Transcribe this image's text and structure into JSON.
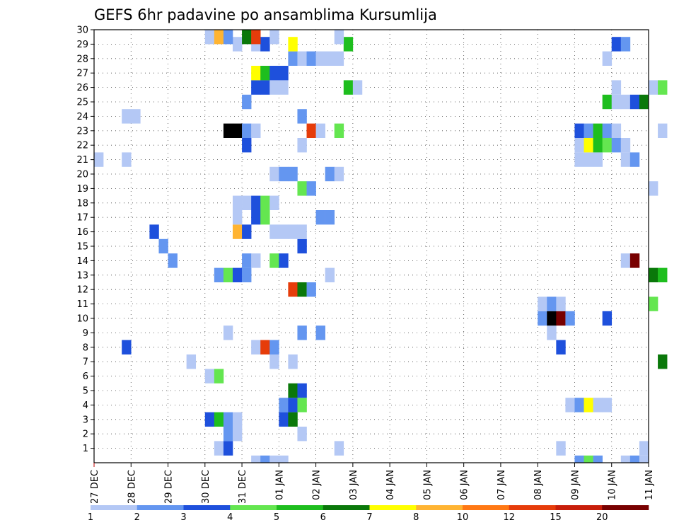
{
  "chart_data": {
    "type": "heatmap",
    "title": "GEFS 6hr padavine po ansamblima Kursumlija",
    "xlabel": "",
    "ylabel": "",
    "members": [
      "1",
      "2",
      "3",
      "4",
      "5",
      "6",
      "7",
      "8",
      "9",
      "10",
      "11",
      "12",
      "13",
      "14",
      "15",
      "16",
      "17",
      "18",
      "19",
      "20",
      "21",
      "22",
      "23",
      "24",
      "25",
      "26",
      "27",
      "28",
      "29",
      "30"
    ],
    "x_ticks": [
      "27 DEC",
      "28 DEC",
      "29 DEC",
      "30 DEC",
      "31 DEC",
      "01 JAN",
      "02 JAN",
      "03 JAN",
      "04 JAN",
      "05 JAN",
      "06 JAN",
      "07 JAN",
      "08 JAN",
      "09 JAN",
      "10 JAN",
      "11 JAN"
    ],
    "time_steps_per_day": 4,
    "grid": "dotted",
    "colorbar": {
      "labels": [
        "1",
        "2",
        "3",
        "4",
        "5",
        "6",
        "7",
        "8",
        "10",
        "12",
        "15",
        "20"
      ],
      "colors": [
        "#b4c8f5",
        "#6496f0",
        "#1e50dc",
        "#64e650",
        "#1ebe1e",
        "#0a780a",
        "#ffff00",
        "#ffb432",
        "#ff7814",
        "#e63c0a",
        "#c81e0a",
        "#780000"
      ]
    },
    "cells": [
      [
        1,
        13,
        1
      ],
      [
        1,
        14,
        3
      ],
      [
        1,
        26,
        1
      ],
      [
        1,
        50,
        1
      ],
      [
        1,
        59,
        1
      ],
      [
        2,
        14,
        2
      ],
      [
        2,
        15,
        1
      ],
      [
        2,
        22,
        1
      ],
      [
        3,
        12,
        3
      ],
      [
        3,
        13,
        5
      ],
      [
        3,
        14,
        2
      ],
      [
        3,
        15,
        1
      ],
      [
        3,
        20,
        3
      ],
      [
        3,
        21,
        6
      ],
      [
        4,
        20,
        2
      ],
      [
        4,
        21,
        3
      ],
      [
        4,
        22,
        4
      ],
      [
        4,
        51,
        1
      ],
      [
        4,
        52,
        2
      ],
      [
        4,
        53,
        7
      ],
      [
        4,
        54,
        1
      ],
      [
        4,
        55,
        1
      ],
      [
        5,
        21,
        6
      ],
      [
        5,
        22,
        3
      ],
      [
        6,
        12,
        1
      ],
      [
        6,
        13,
        4
      ],
      [
        7,
        10,
        1
      ],
      [
        7,
        19,
        1
      ],
      [
        7,
        21,
        1
      ],
      [
        7,
        61,
        6
      ],
      [
        8,
        3,
        3
      ],
      [
        8,
        17,
        1
      ],
      [
        8,
        18,
        10
      ],
      [
        8,
        19,
        2
      ],
      [
        8,
        50,
        3
      ],
      [
        9,
        14,
        1
      ],
      [
        9,
        22,
        2
      ],
      [
        9,
        24,
        2
      ],
      [
        9,
        49,
        1
      ],
      [
        10,
        48,
        2
      ],
      [
        10,
        49,
        15
      ],
      [
        10,
        50,
        12
      ],
      [
        10,
        51,
        2
      ],
      [
        10,
        55,
        3
      ],
      [
        11,
        48,
        1
      ],
      [
        11,
        49,
        2
      ],
      [
        11,
        50,
        1
      ],
      [
        11,
        60,
        4
      ],
      [
        12,
        21,
        10
      ],
      [
        12,
        22,
        6
      ],
      [
        12,
        23,
        2
      ],
      [
        13,
        13,
        2
      ],
      [
        13,
        14,
        4
      ],
      [
        13,
        15,
        3
      ],
      [
        13,
        16,
        2
      ],
      [
        13,
        25,
        1
      ],
      [
        13,
        60,
        6
      ],
      [
        13,
        61,
        5
      ],
      [
        14,
        8,
        2
      ],
      [
        14,
        16,
        2
      ],
      [
        14,
        17,
        1
      ],
      [
        14,
        19,
        4
      ],
      [
        14,
        20,
        3
      ],
      [
        14,
        57,
        1
      ],
      [
        14,
        58,
        12
      ],
      [
        15,
        7,
        2
      ],
      [
        15,
        22,
        3
      ],
      [
        16,
        6,
        3
      ],
      [
        16,
        15,
        8
      ],
      [
        16,
        16,
        3
      ],
      [
        16,
        19,
        1
      ],
      [
        16,
        20,
        1
      ],
      [
        16,
        21,
        1
      ],
      [
        16,
        22,
        1
      ],
      [
        17,
        15,
        1
      ],
      [
        17,
        17,
        3
      ],
      [
        17,
        18,
        4
      ],
      [
        17,
        24,
        2
      ],
      [
        17,
        25,
        2
      ],
      [
        18,
        15,
        1
      ],
      [
        18,
        16,
        1
      ],
      [
        18,
        17,
        3
      ],
      [
        18,
        18,
        4
      ],
      [
        18,
        19,
        1
      ],
      [
        19,
        22,
        4
      ],
      [
        19,
        23,
        2
      ],
      [
        19,
        60,
        1
      ],
      [
        20,
        19,
        1
      ],
      [
        20,
        20,
        2
      ],
      [
        20,
        21,
        2
      ],
      [
        20,
        25,
        2
      ],
      [
        20,
        26,
        1
      ],
      [
        21,
        0,
        1
      ],
      [
        21,
        3,
        1
      ],
      [
        21,
        52,
        1
      ],
      [
        21,
        53,
        1
      ],
      [
        21,
        54,
        1
      ],
      [
        21,
        57,
        1
      ],
      [
        21,
        58,
        2
      ],
      [
        22,
        16,
        3
      ],
      [
        22,
        22,
        1
      ],
      [
        22,
        52,
        1
      ],
      [
        22,
        53,
        7
      ],
      [
        22,
        54,
        5
      ],
      [
        22,
        55,
        4
      ],
      [
        22,
        56,
        2
      ],
      [
        22,
        57,
        1
      ],
      [
        23,
        14,
        13
      ],
      [
        23,
        15,
        13
      ],
      [
        23,
        16,
        2
      ],
      [
        23,
        17,
        1
      ],
      [
        23,
        23,
        10
      ],
      [
        23,
        24,
        1
      ],
      [
        23,
        26,
        4
      ],
      [
        23,
        52,
        3
      ],
      [
        23,
        53,
        2
      ],
      [
        23,
        54,
        5
      ],
      [
        23,
        55,
        2
      ],
      [
        23,
        56,
        1
      ],
      [
        23,
        61,
        1
      ],
      [
        24,
        3,
        1
      ],
      [
        24,
        4,
        1
      ],
      [
        24,
        22,
        2
      ],
      [
        25,
        16,
        2
      ],
      [
        25,
        55,
        5
      ],
      [
        25,
        56,
        1
      ],
      [
        25,
        57,
        1
      ],
      [
        25,
        58,
        3
      ],
      [
        25,
        59,
        6
      ],
      [
        26,
        17,
        3
      ],
      [
        26,
        18,
        3
      ],
      [
        26,
        19,
        1
      ],
      [
        26,
        20,
        1
      ],
      [
        26,
        27,
        5
      ],
      [
        26,
        28,
        1
      ],
      [
        26,
        56,
        1
      ],
      [
        26,
        60,
        1
      ],
      [
        26,
        61,
        4
      ],
      [
        27,
        17,
        7
      ],
      [
        27,
        18,
        5
      ],
      [
        27,
        19,
        3
      ],
      [
        27,
        20,
        3
      ],
      [
        28,
        21,
        2
      ],
      [
        28,
        22,
        1
      ],
      [
        28,
        23,
        2
      ],
      [
        28,
        24,
        1
      ],
      [
        28,
        25,
        1
      ],
      [
        28,
        26,
        1
      ],
      [
        28,
        55,
        1
      ],
      [
        29,
        15,
        1
      ],
      [
        29,
        17,
        1
      ],
      [
        29,
        18,
        3
      ],
      [
        29,
        21,
        7
      ],
      [
        29,
        27,
        5
      ],
      [
        29,
        56,
        3
      ],
      [
        29,
        57,
        2
      ],
      [
        30,
        12,
        1
      ],
      [
        30,
        13,
        8
      ],
      [
        30,
        14,
        2
      ],
      [
        30,
        16,
        6
      ],
      [
        30,
        17,
        10
      ],
      [
        30,
        19,
        1
      ],
      [
        30,
        26,
        1
      ],
      [
        0,
        17,
        1
      ],
      [
        0,
        18,
        2
      ],
      [
        0,
        19,
        1
      ],
      [
        0,
        20,
        1
      ],
      [
        0,
        52,
        2
      ],
      [
        0,
        53,
        4
      ],
      [
        0,
        54,
        2
      ],
      [
        0,
        57,
        1
      ],
      [
        0,
        58,
        2
      ],
      [
        0,
        59,
        1
      ]
    ]
  }
}
